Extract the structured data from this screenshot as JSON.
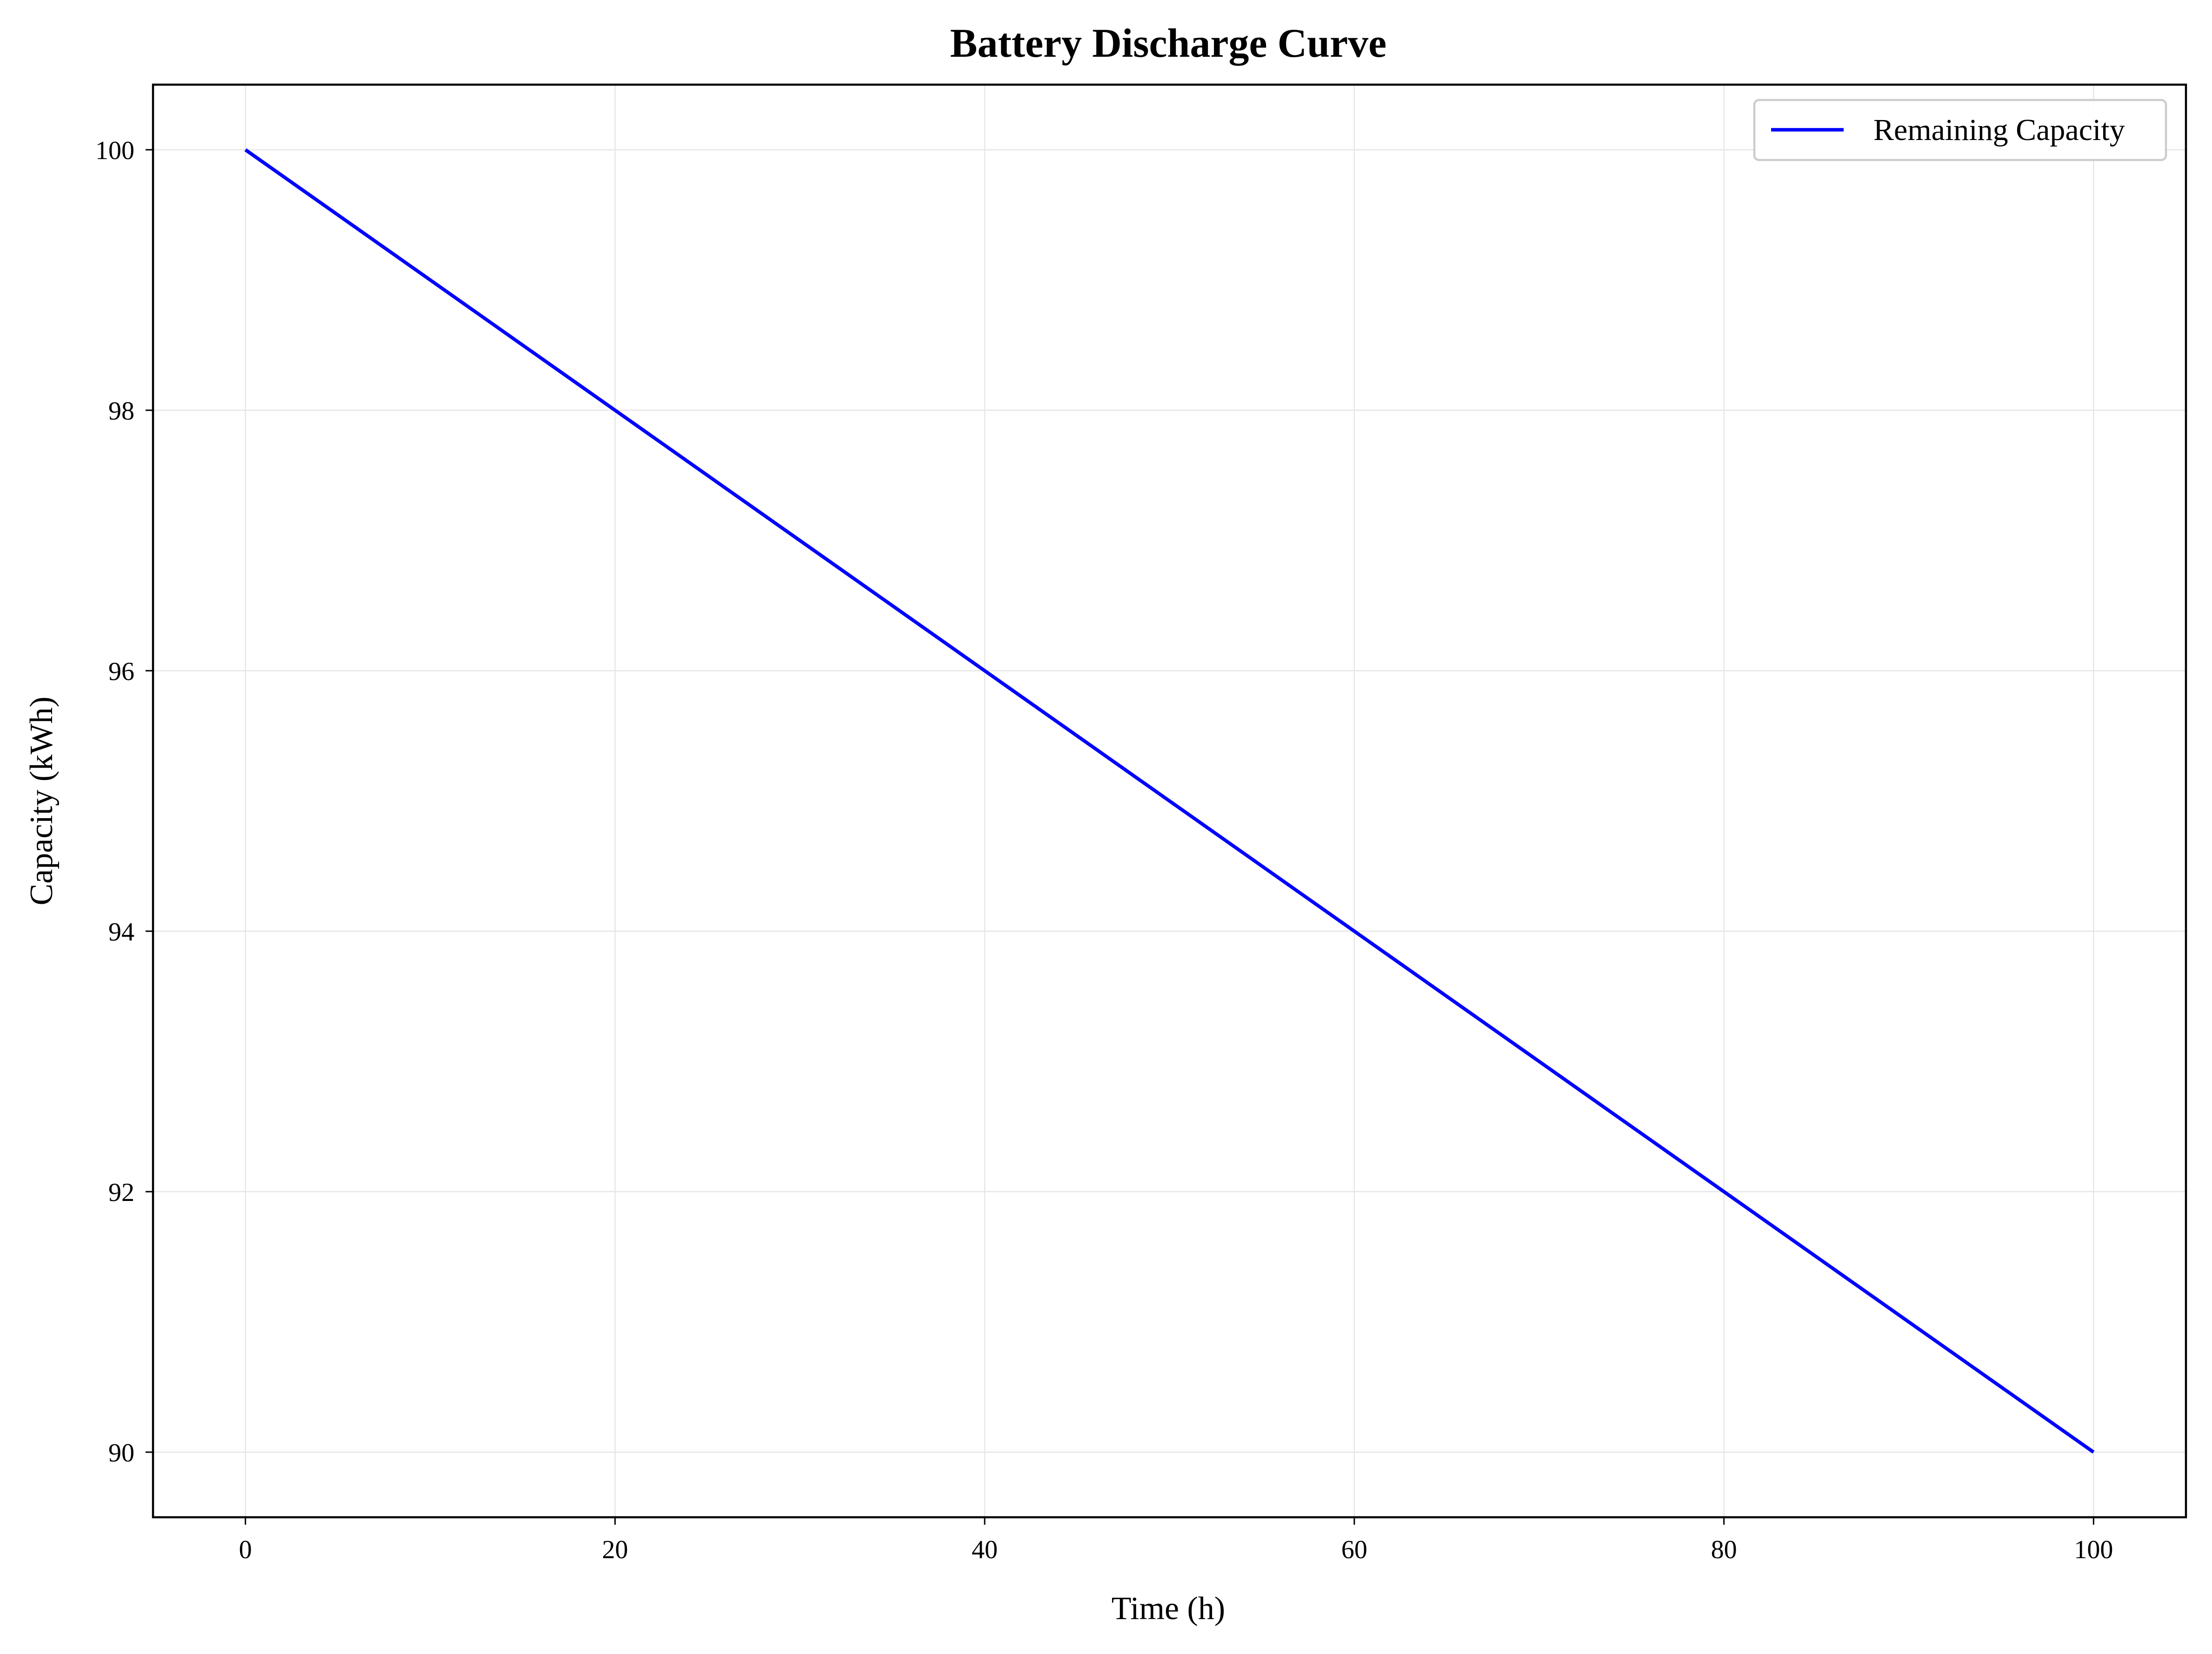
{
  "chart_data": {
    "type": "line",
    "title": "Battery Discharge Curve",
    "xlabel": "Time (h)",
    "ylabel": "Capacity (kWh)",
    "xlim": [
      -5,
      105
    ],
    "ylim": [
      89.5,
      100.5
    ],
    "xticks": [
      0,
      20,
      40,
      60,
      80,
      100
    ],
    "yticks": [
      90,
      92,
      94,
      96,
      98,
      100
    ],
    "xtick_labels": [
      "0",
      "20",
      "40",
      "60",
      "80",
      "100"
    ],
    "ytick_labels": [
      "90",
      "92",
      "94",
      "96",
      "98",
      "100"
    ],
    "grid": true,
    "legend_position": "top-right",
    "series": [
      {
        "name": "Remaining Capacity",
        "color": "#0000ff",
        "x": [
          0,
          100
        ],
        "y": [
          100,
          90
        ]
      }
    ]
  }
}
